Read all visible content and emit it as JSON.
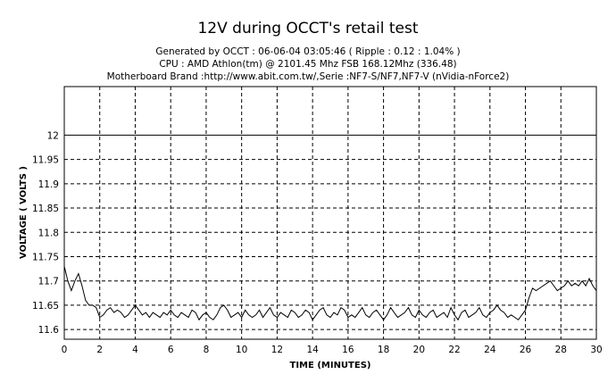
{
  "chart_data": {
    "type": "line",
    "title": "12V during OCCT's retail test",
    "subtitle_lines": [
      "Generated by OCCT : 06-06-04 03:05:46 ( Ripple : 0.12 : 1.04% )",
      "CPU : AMD Athlon(tm)  @ 2101.45 Mhz FSB 168.12Mhz (336.48)",
      "Motherboard Brand :http://www.abit.com.tw/,Serie :NF7-S/NF7,NF7-V (nVidia-nForce2)"
    ],
    "xlabel": "TIME (MINUTES)",
    "ylabel": "VOLTAGE ( VOLTS )",
    "xlim": [
      0,
      30
    ],
    "ylim": [
      11.58,
      12.1
    ],
    "x_ticks": [
      "0",
      "2",
      "4",
      "6",
      "8",
      "10",
      "12",
      "14",
      "16",
      "18",
      "20",
      "22",
      "24",
      "26",
      "28",
      "30"
    ],
    "y_ticks": [
      "11.6",
      "11.65",
      "11.7",
      "11.75",
      "11.8",
      "11.85",
      "11.9",
      "11.95",
      "12"
    ],
    "reference_line": 12.0,
    "grid": true,
    "line_color": "#000000",
    "series": [
      {
        "x": [
          0.0,
          0.2,
          0.4,
          0.6,
          0.8,
          1.0,
          1.2,
          1.4,
          1.6,
          1.8,
          2.0,
          2.2,
          2.4,
          2.6,
          2.8,
          3.0,
          3.2,
          3.4,
          3.6,
          3.8,
          4.0,
          4.2,
          4.4,
          4.6,
          4.8,
          5.0,
          5.2,
          5.4,
          5.6,
          5.8,
          6.0,
          6.2,
          6.4,
          6.6,
          6.8,
          7.0,
          7.2,
          7.4,
          7.6,
          7.8,
          8.0,
          8.2,
          8.4,
          8.6,
          8.8,
          9.0,
          9.2,
          9.4,
          9.6,
          9.8,
          10.0,
          10.2,
          10.4,
          10.6,
          10.8,
          11.0,
          11.2,
          11.4,
          11.6,
          11.8,
          12.0,
          12.2,
          12.4,
          12.6,
          12.8,
          13.0,
          13.2,
          13.4,
          13.6,
          13.8,
          14.0,
          14.2,
          14.4,
          14.6,
          14.8,
          15.0,
          15.2,
          15.4,
          15.6,
          15.8,
          16.0,
          16.2,
          16.4,
          16.6,
          16.8,
          17.0,
          17.2,
          17.4,
          17.6,
          17.8,
          18.0,
          18.2,
          18.4,
          18.6,
          18.8,
          19.0,
          19.2,
          19.4,
          19.6,
          19.8,
          20.0,
          20.2,
          20.4,
          20.6,
          20.8,
          21.0,
          21.2,
          21.4,
          21.6,
          21.8,
          22.0,
          22.2,
          22.4,
          22.6,
          22.8,
          23.0,
          23.2,
          23.4,
          23.6,
          23.8,
          24.0,
          24.2,
          24.4,
          24.6,
          24.8,
          25.0,
          25.2,
          25.4,
          25.6,
          25.8,
          26.0,
          26.2,
          26.4,
          26.6,
          26.8,
          27.0,
          27.2,
          27.4,
          27.6,
          27.8,
          28.0,
          28.2,
          28.4,
          28.6,
          28.8,
          29.0,
          29.2,
          29.4,
          29.6,
          29.8,
          30.0
        ],
        "y": [
          11.73,
          11.7,
          11.68,
          11.7,
          11.715,
          11.69,
          11.66,
          11.65,
          11.65,
          11.645,
          11.625,
          11.63,
          11.64,
          11.645,
          11.635,
          11.64,
          11.635,
          11.625,
          11.63,
          11.64,
          11.65,
          11.64,
          11.63,
          11.635,
          11.625,
          11.635,
          11.63,
          11.625,
          11.635,
          11.63,
          11.64,
          11.63,
          11.625,
          11.635,
          11.63,
          11.625,
          11.64,
          11.635,
          11.62,
          11.63,
          11.635,
          11.625,
          11.62,
          11.63,
          11.645,
          11.65,
          11.64,
          11.625,
          11.63,
          11.635,
          11.625,
          11.64,
          11.63,
          11.625,
          11.63,
          11.64,
          11.625,
          11.635,
          11.645,
          11.63,
          11.625,
          11.635,
          11.63,
          11.625,
          11.64,
          11.635,
          11.625,
          11.63,
          11.64,
          11.635,
          11.62,
          11.63,
          11.64,
          11.645,
          11.63,
          11.625,
          11.635,
          11.63,
          11.645,
          11.64,
          11.625,
          11.63,
          11.625,
          11.635,
          11.645,
          11.63,
          11.625,
          11.635,
          11.64,
          11.63,
          11.62,
          11.63,
          11.645,
          11.635,
          11.625,
          11.63,
          11.635,
          11.645,
          11.63,
          11.625,
          11.64,
          11.63,
          11.625,
          11.635,
          11.64,
          11.625,
          11.63,
          11.635,
          11.625,
          11.645,
          11.63,
          11.62,
          11.635,
          11.64,
          11.625,
          11.63,
          11.635,
          11.645,
          11.63,
          11.625,
          11.635,
          11.64,
          11.65,
          11.64,
          11.635,
          11.625,
          11.63,
          11.625,
          11.62,
          11.63,
          11.64,
          11.665,
          11.685,
          11.68,
          11.685,
          11.69,
          11.695,
          11.7,
          11.69,
          11.68,
          11.685,
          11.69,
          11.7,
          11.69,
          11.695,
          11.69,
          11.7,
          11.69,
          11.705,
          11.69,
          11.68
        ]
      }
    ]
  }
}
